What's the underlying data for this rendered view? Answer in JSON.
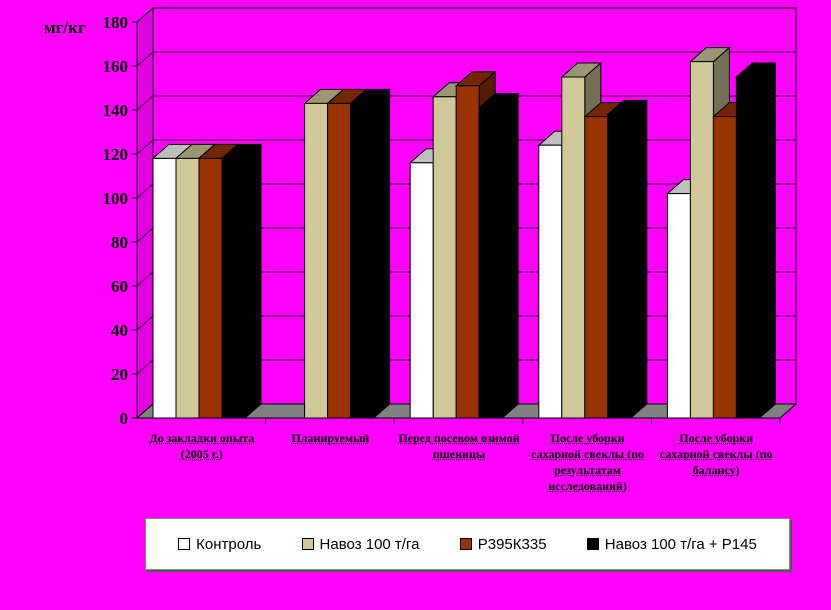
{
  "chart_data": {
    "type": "bar",
    "unit_label": "мг/кг",
    "yticks": [
      "0",
      "20",
      "40",
      "60",
      "80",
      "100",
      "120",
      "140",
      "160",
      "180"
    ],
    "ylim": [
      0,
      180
    ],
    "grid": true,
    "legend_position": "bottom",
    "categories": [
      "До закладки опыта (2005 г.)",
      "Планируемый",
      "Перед посевом озимой пшеницы",
      "После уборки сахарной свеклы (по результатам исследований)",
      "После уборки сахарной свеклы (по балансу)"
    ],
    "series": [
      {
        "name": "Контроль",
        "color": "#ffffff",
        "values": [
          118,
          null,
          116,
          124,
          102
        ]
      },
      {
        "name": "Навоз 100 т/га",
        "color": "#cfc99a",
        "values": [
          118,
          143,
          146,
          155,
          162
        ]
      },
      {
        "name": "Р395К335",
        "color": "#993300",
        "values": [
          118,
          143,
          151,
          137,
          137
        ]
      },
      {
        "name": "Навоз 100 т/га + Р145",
        "color": "#000000",
        "values": [
          118,
          143,
          141,
          138,
          155
        ]
      }
    ]
  }
}
